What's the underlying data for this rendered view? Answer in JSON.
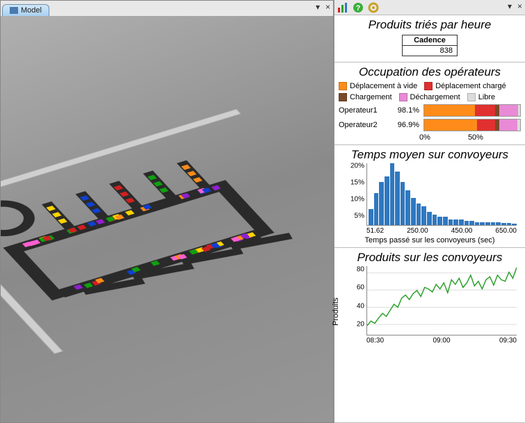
{
  "left": {
    "tab_label": "Model",
    "minimize": "▾",
    "close": "×"
  },
  "right": {
    "minimize": "▾",
    "close": "×"
  },
  "s1": {
    "title": "Produits triés par heure",
    "cadence_label": "Cadence",
    "cadence_value": "838"
  },
  "s2": {
    "title": "Occupation des opérateurs",
    "legend": {
      "l0": {
        "label": "Déplacement à vide",
        "color": "#ff8c1a"
      },
      "l1": {
        "label": "Déplacement chargé",
        "color": "#e03030"
      },
      "l2": {
        "label": "Chargement",
        "color": "#7a4a2a"
      },
      "l3": {
        "label": "Déchargement",
        "color": "#e88ad6"
      },
      "l4": {
        "label": "Libre",
        "color": "#dcdcdc"
      }
    },
    "rows": {
      "r0": {
        "label": "Operateur1",
        "pct": "98.1%",
        "segs": [
          53,
          21,
          4,
          20,
          2
        ]
      },
      "r1": {
        "label": "Operateur2",
        "pct": "96.9%",
        "segs": [
          55,
          19,
          4,
          19,
          3
        ]
      }
    },
    "xaxis": {
      "t0": "0%",
      "t1": "50%"
    }
  },
  "s3": {
    "title": "Temps moyen sur convoyeurs",
    "yticks": [
      "20%",
      "15%",
      "10%",
      "5%"
    ],
    "bars": [
      6,
      12,
      16,
      18,
      23,
      20,
      16,
      13,
      10,
      8,
      7,
      5,
      4,
      3,
      3,
      2,
      2,
      2,
      1.5,
      1.5,
      1,
      1,
      1,
      1,
      1,
      0.8,
      0.8,
      0.5
    ],
    "bar_color": "#2f78c0",
    "xaxis": {
      "t0": "51.62",
      "t1": "250.00",
      "t2": "450.00",
      "t3": "650.00"
    },
    "xlabel": "Temps passé sur les convoyeurs (sec)"
  },
  "s4": {
    "title": "Produits sur les convoyeurs",
    "ylabel": "Produits",
    "yticks": [
      "80",
      "60",
      "40",
      "20"
    ],
    "line_color": "#2aa02a",
    "grid_color": "#dddddd",
    "points": [
      12,
      18,
      15,
      22,
      28,
      24,
      32,
      40,
      36,
      48,
      52,
      46,
      54,
      58,
      50,
      62,
      60,
      56,
      66,
      60,
      68,
      55,
      72,
      66,
      74,
      62,
      68,
      78,
      64,
      70,
      60,
      72,
      76,
      65,
      78,
      72,
      70,
      82,
      74,
      88
    ],
    "ymax": 90,
    "xaxis": {
      "t0": "08:30",
      "t1": "09:00",
      "t2": "09:30"
    }
  },
  "scene": {
    "track_color": "#2a2a2a",
    "floor_color": "#9a9a9a",
    "pkg_colors": [
      "#ffd400",
      "#1040d0",
      "#d02020",
      "#10a010",
      "#ff8c1a",
      "#9020d0",
      "#ff5fcf"
    ]
  }
}
